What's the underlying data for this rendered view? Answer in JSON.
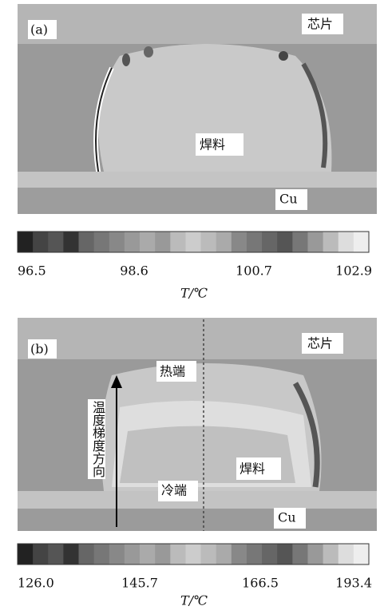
{
  "panels": [
    {
      "label": "(a)",
      "chip": "芯片",
      "solder": "焊料",
      "substrate": "Cu",
      "colorbar": {
        "ticks": [
          "96.5",
          "98.6",
          "100.7",
          "102.9"
        ],
        "axis_label": "T/℃"
      }
    },
    {
      "label": "(b)",
      "chip": "芯片",
      "hot_end": "热端",
      "cold_end": "冷端",
      "gradient": "温度梯度方向",
      "solder": "焊料",
      "substrate": "Cu",
      "colorbar": {
        "ticks": [
          "126.0",
          "145.7",
          "166.5",
          "193.4"
        ],
        "axis_label": "T/℃"
      }
    }
  ]
}
